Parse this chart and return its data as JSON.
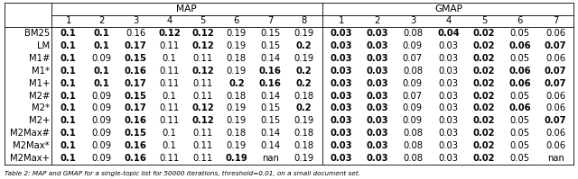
{
  "title_map": "MAP",
  "title_gmap": "GMAP",
  "map_cols": [
    "1",
    "2",
    "3",
    "4",
    "5",
    "6",
    "7",
    "8"
  ],
  "gmap_cols": [
    "1",
    "2",
    "3",
    "4",
    "5",
    "6",
    "7"
  ],
  "row_labels": [
    "BM25",
    "LM",
    "M1#",
    "M1*",
    "M1+",
    "M2#",
    "M2*",
    "M2+",
    "M2Max#",
    "M2Max*",
    "M2Max+"
  ],
  "map_data": [
    [
      "0.1",
      "0.1",
      "0.16",
      "0.12",
      "0.12",
      "0.19",
      "0.15",
      "0.19"
    ],
    [
      "0.1",
      "0.1",
      "0.17",
      "0.11",
      "0.12",
      "0.19",
      "0.15",
      "0.2"
    ],
    [
      "0.1",
      "0.09",
      "0.15",
      "0.1",
      "0.11",
      "0.18",
      "0.14",
      "0.19"
    ],
    [
      "0.1",
      "0.1",
      "0.16",
      "0.11",
      "0.12",
      "0.19",
      "0.16",
      "0.2"
    ],
    [
      "0.1",
      "0.1",
      "0.17",
      "0.11",
      "0.11",
      "0.2",
      "0.16",
      "0.2"
    ],
    [
      "0.1",
      "0.09",
      "0.15",
      "0.1",
      "0.11",
      "0.18",
      "0.14",
      "0.18"
    ],
    [
      "0.1",
      "0.09",
      "0.17",
      "0.11",
      "0.12",
      "0.19",
      "0.15",
      "0.2"
    ],
    [
      "0.1",
      "0.09",
      "0.16",
      "0.11",
      "0.12",
      "0.19",
      "0.15",
      "0.19"
    ],
    [
      "0.1",
      "0.09",
      "0.15",
      "0.1",
      "0.11",
      "0.18",
      "0.14",
      "0.18"
    ],
    [
      "0.1",
      "0.09",
      "0.16",
      "0.1",
      "0.11",
      "0.19",
      "0.14",
      "0.18"
    ],
    [
      "0.1",
      "0.09",
      "0.16",
      "0.11",
      "0.11",
      "0.19",
      "nan",
      "0.19"
    ]
  ],
  "gmap_data": [
    [
      "0.03",
      "0.03",
      "0.08",
      "0.04",
      "0.02",
      "0.05",
      "0.06"
    ],
    [
      "0.03",
      "0.03",
      "0.09",
      "0.03",
      "0.02",
      "0.06",
      "0.07"
    ],
    [
      "0.03",
      "0.03",
      "0.07",
      "0.03",
      "0.02",
      "0.05",
      "0.06"
    ],
    [
      "0.03",
      "0.03",
      "0.08",
      "0.03",
      "0.02",
      "0.06",
      "0.07"
    ],
    [
      "0.03",
      "0.03",
      "0.09",
      "0.03",
      "0.02",
      "0.06",
      "0.07"
    ],
    [
      "0.03",
      "0.03",
      "0.07",
      "0.03",
      "0.02",
      "0.05",
      "0.06"
    ],
    [
      "0.03",
      "0.03",
      "0.09",
      "0.03",
      "0.02",
      "0.06",
      "0.06"
    ],
    [
      "0.03",
      "0.03",
      "0.09",
      "0.03",
      "0.02",
      "0.05",
      "0.07"
    ],
    [
      "0.03",
      "0.03",
      "0.08",
      "0.03",
      "0.02",
      "0.05",
      "0.06"
    ],
    [
      "0.03",
      "0.03",
      "0.08",
      "0.03",
      "0.02",
      "0.05",
      "0.06"
    ],
    [
      "0.03",
      "0.03",
      "0.08",
      "0.03",
      "0.02",
      "0.05",
      "nan"
    ]
  ],
  "map_bold": [
    [
      true,
      true,
      false,
      true,
      true,
      false,
      false,
      false
    ],
    [
      true,
      true,
      true,
      false,
      true,
      false,
      false,
      true
    ],
    [
      true,
      false,
      true,
      false,
      false,
      false,
      false,
      false
    ],
    [
      true,
      true,
      true,
      false,
      true,
      false,
      true,
      true
    ],
    [
      true,
      true,
      true,
      false,
      false,
      true,
      true,
      true
    ],
    [
      true,
      false,
      true,
      false,
      false,
      false,
      false,
      false
    ],
    [
      true,
      false,
      true,
      false,
      true,
      false,
      false,
      true
    ],
    [
      true,
      false,
      true,
      false,
      true,
      false,
      false,
      false
    ],
    [
      true,
      false,
      true,
      false,
      false,
      false,
      false,
      false
    ],
    [
      true,
      false,
      true,
      false,
      false,
      false,
      false,
      false
    ],
    [
      true,
      false,
      true,
      false,
      false,
      true,
      false,
      false
    ]
  ],
  "gmap_bold": [
    [
      true,
      true,
      false,
      true,
      true,
      false,
      false
    ],
    [
      true,
      true,
      false,
      false,
      true,
      true,
      true
    ],
    [
      true,
      true,
      false,
      false,
      true,
      false,
      false
    ],
    [
      true,
      true,
      false,
      false,
      true,
      true,
      true
    ],
    [
      true,
      true,
      false,
      false,
      true,
      true,
      true
    ],
    [
      true,
      true,
      false,
      false,
      true,
      false,
      false
    ],
    [
      true,
      true,
      false,
      false,
      true,
      true,
      false
    ],
    [
      true,
      true,
      false,
      false,
      true,
      false,
      true
    ],
    [
      true,
      true,
      false,
      false,
      true,
      false,
      false
    ],
    [
      true,
      true,
      false,
      false,
      true,
      false,
      false
    ],
    [
      true,
      true,
      false,
      false,
      true,
      false,
      false
    ]
  ],
  "nan_bold_map": [
    [
      10,
      6
    ]
  ],
  "nan_bold_gmap": [
    [
      10,
      6
    ]
  ],
  "background_color": "#ffffff",
  "font_size": 7.2,
  "caption": "Table 2: MAP and GMAP for a single-topic list for 50000 iterations, threshold=0.01, on a small document set."
}
